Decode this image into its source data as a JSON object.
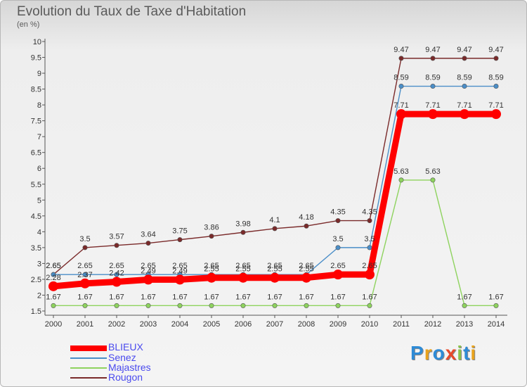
{
  "header": {
    "title": "Evolution du Taux de Taxe d'Habitation",
    "unit": "(en %)"
  },
  "brand": {
    "letters": [
      "P",
      "r",
      "o",
      "x",
      "i",
      "t",
      "i"
    ],
    "colors": [
      "#2e8bd6",
      "#e8a21c",
      "#2e8bd6",
      "#e84a2a",
      "#8bc34a",
      "#2e8bd6",
      "#e8a21c"
    ]
  },
  "chart_data": {
    "type": "line",
    "title": "Evolution du Taux de Taxe d'Habitation",
    "ylabel": "(en %)",
    "xlabel": "",
    "x": [
      "2000",
      "2001",
      "2002",
      "2003",
      "2004",
      "2005",
      "2006",
      "2007",
      "2008",
      "2009",
      "2010",
      "2011",
      "2012",
      "2013",
      "2014"
    ],
    "ylim": [
      1.5,
      10
    ],
    "yticks": [
      1.5,
      2,
      2.5,
      3,
      3.5,
      4,
      4.5,
      5,
      5.5,
      6,
      6.5,
      7,
      7.5,
      8,
      8.5,
      9,
      9.5,
      10
    ],
    "grid": false,
    "legend_position": "bottom-left",
    "series": [
      {
        "name": "BLIEUX",
        "color": "#ff0000",
        "values": [
          2.28,
          2.37,
          2.42,
          2.49,
          2.49,
          2.55,
          2.55,
          2.55,
          2.55,
          2.65,
          2.65,
          7.71,
          7.71,
          7.71,
          7.71
        ],
        "labels": [
          "2.28",
          "2.37",
          "2.42",
          "2.49",
          "2.49",
          "2.55",
          "2.55",
          "2.55",
          "2.55",
          "2.65",
          "2.65",
          "7.71",
          "7.71",
          "7.71",
          "7.71"
        ]
      },
      {
        "name": "Senez",
        "color": "#4a8ec8",
        "values": [
          2.65,
          2.65,
          2.65,
          2.65,
          2.65,
          2.65,
          2.65,
          2.65,
          2.65,
          3.5,
          3.5,
          8.59,
          8.59,
          8.59,
          8.59
        ],
        "labels": [
          "2.65",
          "2.65",
          "2.65",
          "2.65",
          "2.65",
          "2.65",
          "2.65",
          "2.65",
          "2.65",
          "3.5",
          "3.5",
          "8.59",
          "8.59",
          "8.59",
          "8.59"
        ]
      },
      {
        "name": "Majastres",
        "color": "#8ed35e",
        "values": [
          1.67,
          1.67,
          1.67,
          1.67,
          1.67,
          1.67,
          1.67,
          1.67,
          1.67,
          1.67,
          1.67,
          5.63,
          5.63,
          1.67,
          1.67
        ],
        "labels": [
          "1.67",
          "1.67",
          "1.67",
          "1.67",
          "1.67",
          "1.67",
          "1.67",
          "1.67",
          "1.67",
          "1.67",
          "1.67",
          "5.63",
          "5.63",
          "1.67",
          "1.67"
        ]
      },
      {
        "name": "Rougon",
        "color": "#7a2a2a",
        "values": [
          2.65,
          3.5,
          3.57,
          3.64,
          3.75,
          3.86,
          3.98,
          4.1,
          4.18,
          4.35,
          4.35,
          9.47,
          9.47,
          9.47,
          9.47
        ],
        "labels": [
          "2.65",
          "3.5",
          "3.57",
          "3.64",
          "3.75",
          "3.86",
          "3.98",
          "4.1",
          "4.18",
          "4.35",
          "4.35",
          "9.47",
          "9.47",
          "9.47",
          "9.47"
        ]
      }
    ]
  }
}
